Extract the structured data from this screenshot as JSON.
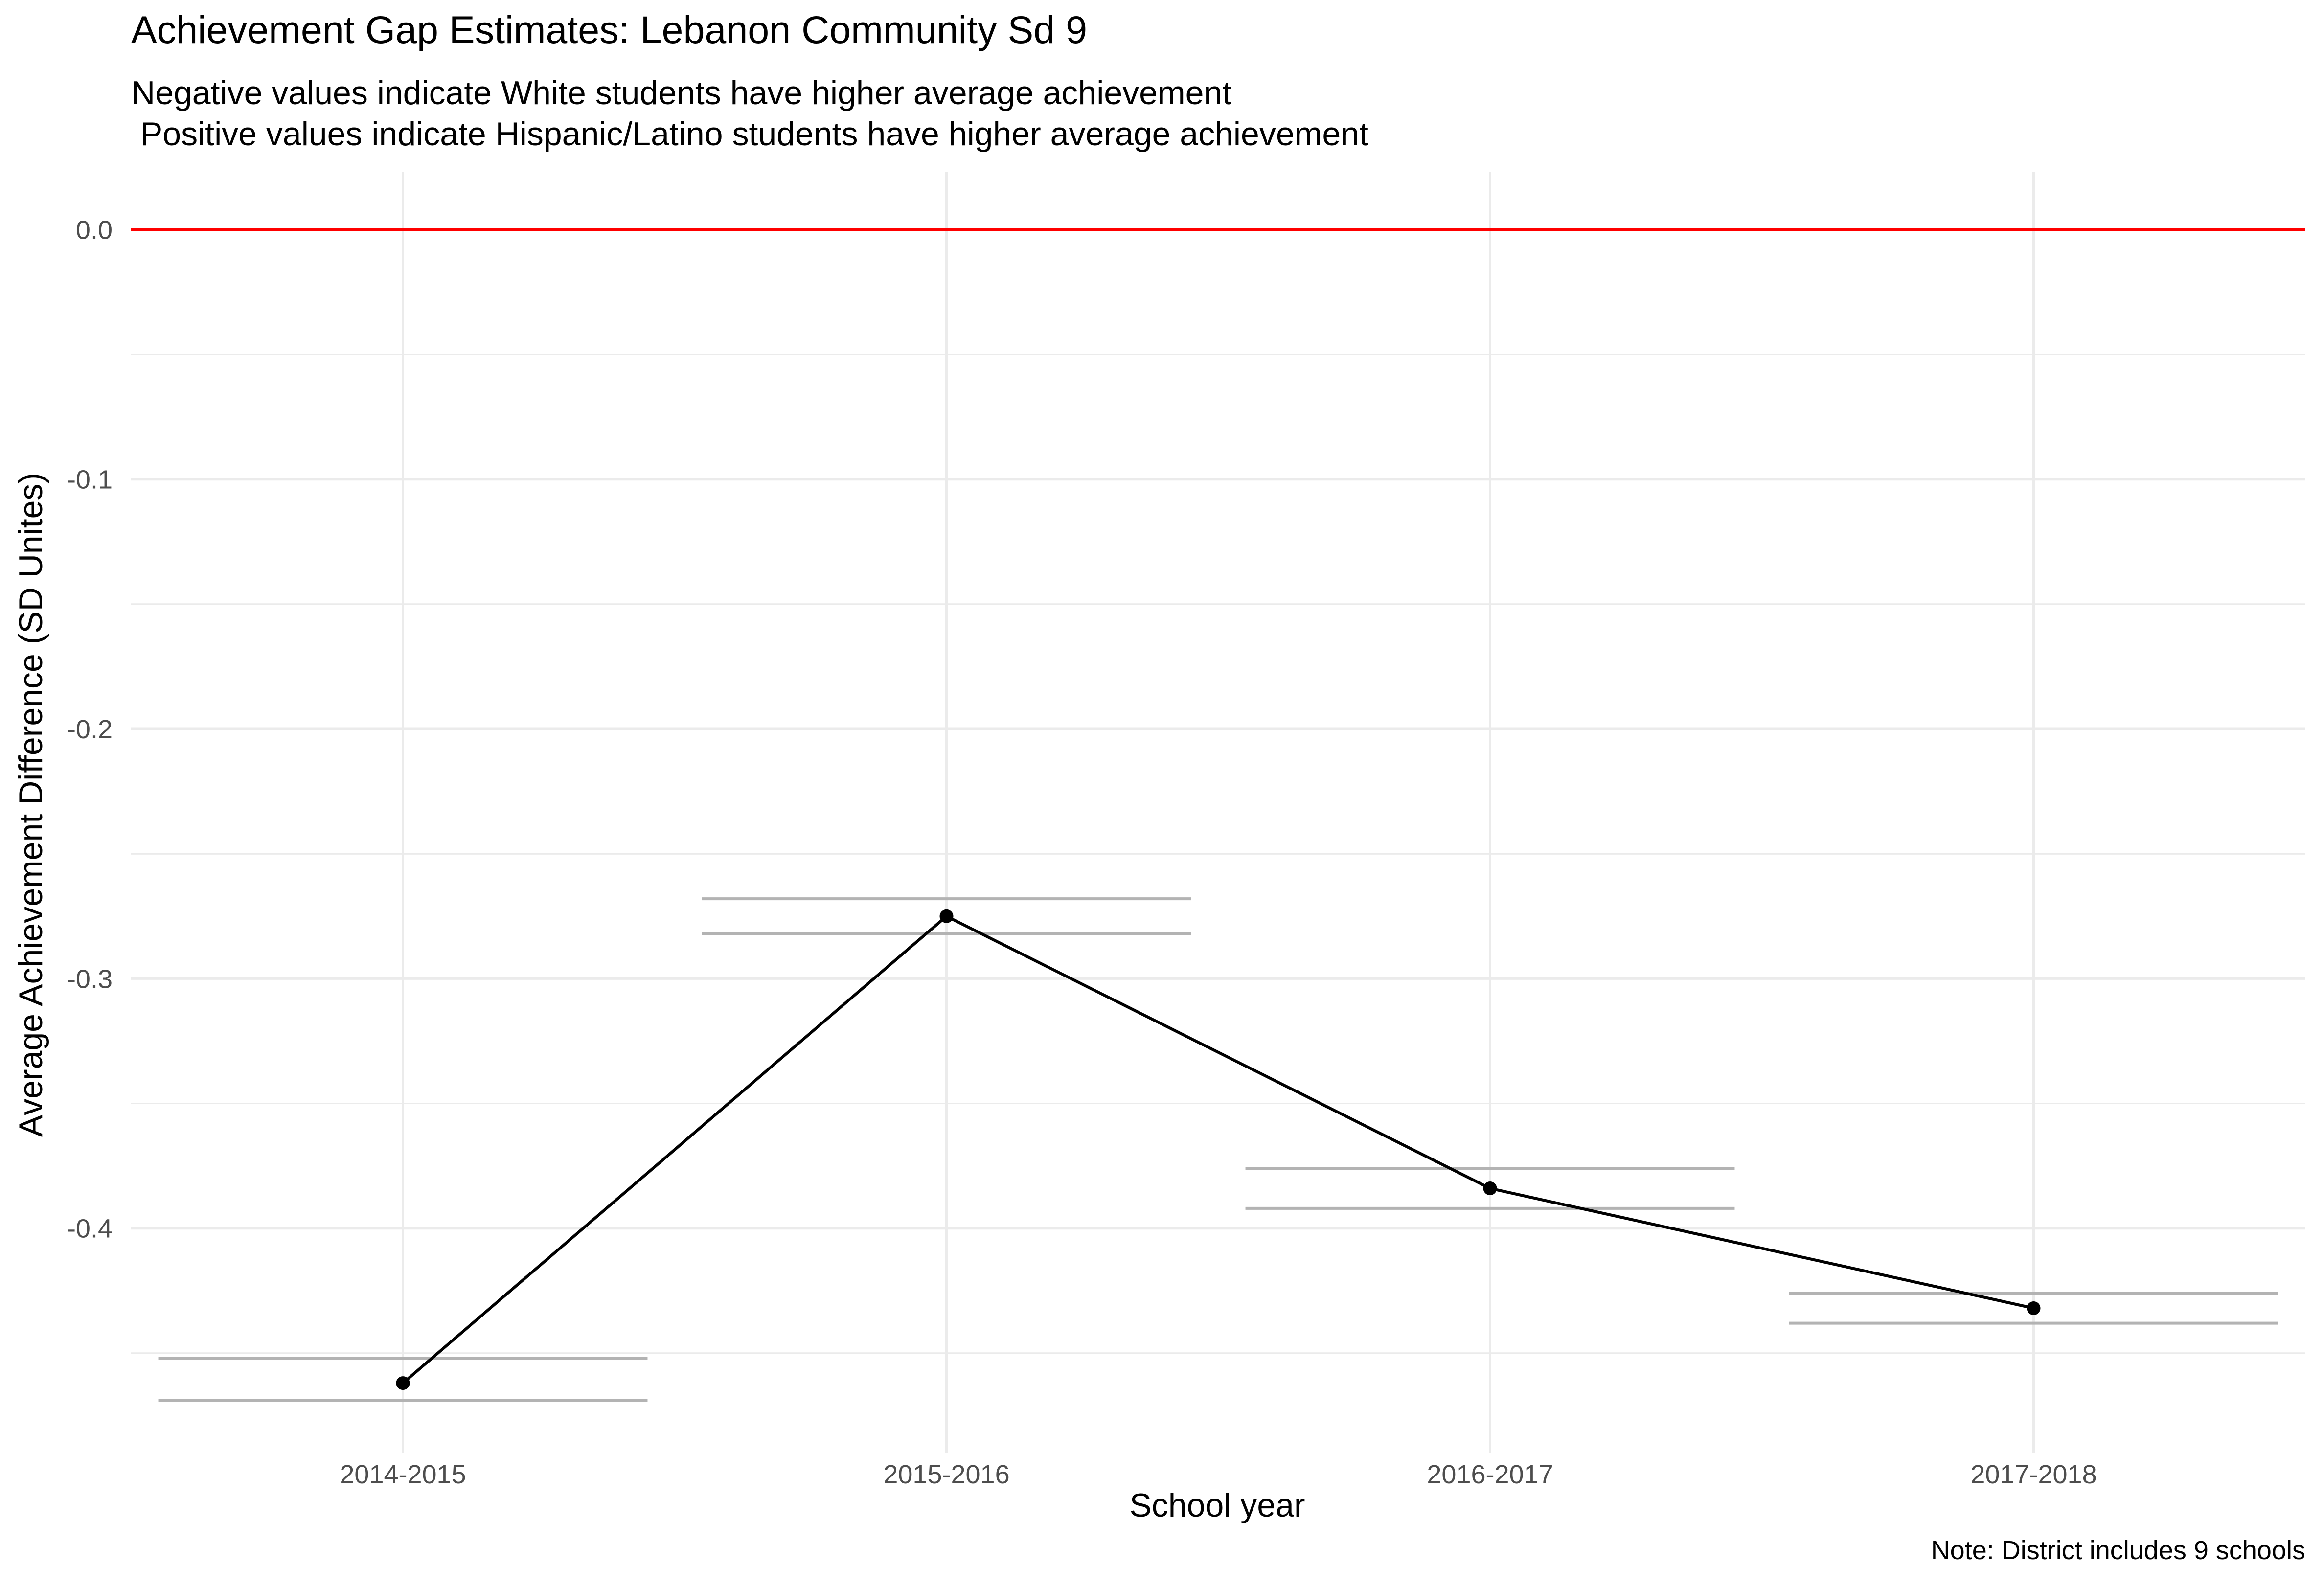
{
  "chart_data": {
    "type": "line",
    "title": "Achievement Gap Estimates: Lebanon Community Sd 9",
    "subtitle_lines": [
      "Negative values indicate White students have higher average achievement",
      " Positive values indicate Hispanic/Latino students have higher average achievement"
    ],
    "caption": "Note: District includes 9 schools",
    "xlabel": "School year",
    "ylabel": "Average Achievement Difference (SD Unites)",
    "categories": [
      "2014-2015",
      "2015-2016",
      "2016-2017",
      "2017-2018"
    ],
    "values": [
      -0.462,
      -0.275,
      -0.384,
      -0.432
    ],
    "interval_lines": {
      "upper": [
        -0.452,
        -0.268,
        -0.376,
        -0.426
      ],
      "lower": [
        -0.469,
        -0.282,
        -0.392,
        -0.438
      ]
    },
    "reference_line": {
      "y": 0.0,
      "color": "#ff0000"
    },
    "yticks": [
      0.0,
      -0.1,
      -0.2,
      -0.3,
      -0.4
    ],
    "ytick_labels": [
      "0.0",
      "-0.1",
      "-0.2",
      "-0.3",
      "-0.4"
    ],
    "ylim": [
      -0.49,
      0.023
    ],
    "grid": true,
    "colors": {
      "line": "#000000",
      "points": "#000000",
      "intervals": "#b3b3b3",
      "grid": "#ebebeb",
      "reference": "#ff0000"
    }
  }
}
